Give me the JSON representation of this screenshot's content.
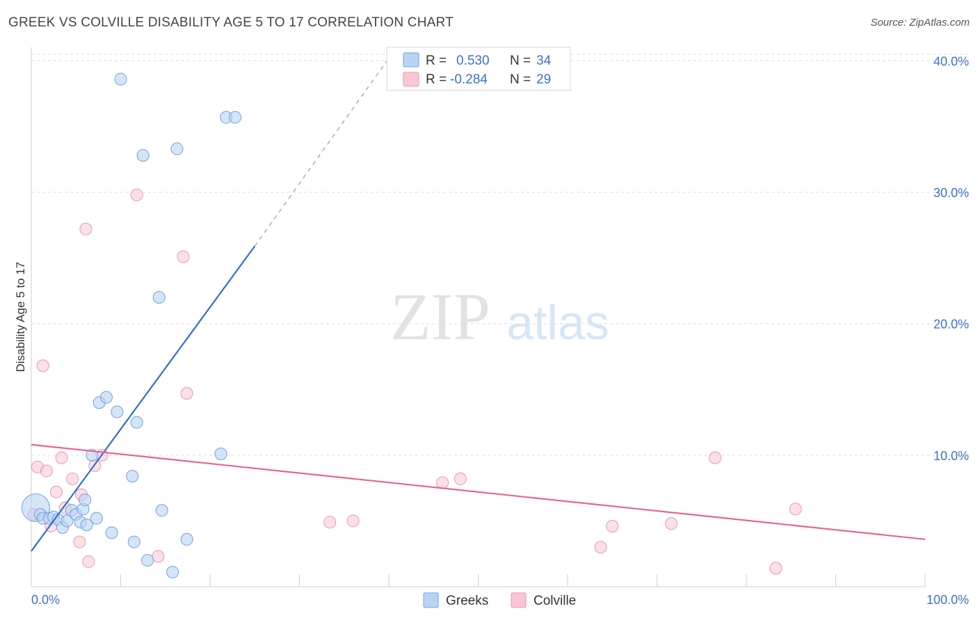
{
  "title": "GREEK VS COLVILLE DISABILITY AGE 5 TO 17 CORRELATION CHART",
  "source": "Source: ZipAtlas.com",
  "watermark": {
    "zip": "ZIP",
    "atlas": "atlas"
  },
  "colors": {
    "greeks_fill": "#b9d3f4",
    "greeks_stroke": "#6fa0e0",
    "greeks_line": "#2e6fcf",
    "colville_fill": "#f9c6d5",
    "colville_stroke": "#ec94b1",
    "colville_line": "#e8658f",
    "value_blue": "#3b73c8",
    "grid": "#dddddd"
  },
  "legend": {
    "rows": [
      {
        "r_label": "R = ",
        "r_value": "0.530",
        "n_label": "N = ",
        "n_value": "34"
      },
      {
        "r_label": "R = ",
        "r_value": "-0.284",
        "n_label": "N = ",
        "n_value": "29"
      }
    ]
  },
  "bottom_legend": [
    "Greeks",
    "Colville"
  ],
  "chart_data": {
    "type": "scatter",
    "title": "GREEK VS COLVILLE DISABILITY AGE 5 TO 17 CORRELATION CHART",
    "xlabel": "",
    "ylabel": "Disability Age 5 to 17",
    "xlim": [
      0,
      100
    ],
    "ylim": [
      0,
      40.5
    ],
    "x_tick_labels": [
      "0.0%",
      "100.0%"
    ],
    "y_ticks": [
      10,
      20,
      30,
      40
    ],
    "y_tick_labels": [
      "10.0%",
      "20.0%",
      "30.0%",
      "40.0%"
    ],
    "grid": true,
    "legend_position": "top-center",
    "series": [
      {
        "name": "Greeks",
        "r": 0.53,
        "n": 34,
        "points": [
          {
            "x": 0.5,
            "y": 6.0,
            "big": true
          },
          {
            "x": 1.0,
            "y": 5.5
          },
          {
            "x": 1.3,
            "y": 5.2
          },
          {
            "x": 2.0,
            "y": 5.2
          },
          {
            "x": 2.5,
            "y": 5.3
          },
          {
            "x": 3.0,
            "y": 5.1
          },
          {
            "x": 3.5,
            "y": 4.5
          },
          {
            "x": 4.0,
            "y": 5.0
          },
          {
            "x": 4.5,
            "y": 5.8
          },
          {
            "x": 5.0,
            "y": 5.5
          },
          {
            "x": 5.5,
            "y": 4.9
          },
          {
            "x": 5.8,
            "y": 5.9
          },
          {
            "x": 6.0,
            "y": 6.6
          },
          {
            "x": 6.2,
            "y": 4.7
          },
          {
            "x": 6.8,
            "y": 10.0
          },
          {
            "x": 7.3,
            "y": 5.2
          },
          {
            "x": 7.6,
            "y": 14.0
          },
          {
            "x": 8.4,
            "y": 14.4
          },
          {
            "x": 9.0,
            "y": 4.1
          },
          {
            "x": 9.6,
            "y": 13.3
          },
          {
            "x": 10.0,
            "y": 38.6
          },
          {
            "x": 11.3,
            "y": 8.4
          },
          {
            "x": 11.5,
            "y": 3.4
          },
          {
            "x": 11.8,
            "y": 12.5
          },
          {
            "x": 12.5,
            "y": 32.8
          },
          {
            "x": 13.0,
            "y": 2.0
          },
          {
            "x": 14.3,
            "y": 22.0
          },
          {
            "x": 14.6,
            "y": 5.8
          },
          {
            "x": 15.8,
            "y": 1.1
          },
          {
            "x": 16.3,
            "y": 33.3
          },
          {
            "x": 17.4,
            "y": 3.6
          },
          {
            "x": 21.2,
            "y": 10.1
          },
          {
            "x": 21.8,
            "y": 35.7
          },
          {
            "x": 22.8,
            "y": 35.7
          }
        ],
        "trend": {
          "x0": 0,
          "y0": 2.7,
          "x1": 25.0,
          "y1": 25.9,
          "dash_to_x": 40.0,
          "dash_to_y": 40.2
        }
      },
      {
        "name": "Colville",
        "r": -0.284,
        "n": 29,
        "points": [
          {
            "x": 0.3,
            "y": 5.5
          },
          {
            "x": 0.7,
            "y": 9.1
          },
          {
            "x": 1.3,
            "y": 16.8
          },
          {
            "x": 1.7,
            "y": 8.8
          },
          {
            "x": 2.2,
            "y": 4.6
          },
          {
            "x": 2.8,
            "y": 7.2
          },
          {
            "x": 3.4,
            "y": 9.8
          },
          {
            "x": 3.8,
            "y": 6.0
          },
          {
            "x": 4.6,
            "y": 8.2
          },
          {
            "x": 5.4,
            "y": 3.4
          },
          {
            "x": 5.6,
            "y": 7.0
          },
          {
            "x": 6.1,
            "y": 27.2
          },
          {
            "x": 6.4,
            "y": 1.9
          },
          {
            "x": 7.1,
            "y": 9.2
          },
          {
            "x": 7.9,
            "y": 10.0
          },
          {
            "x": 11.8,
            "y": 29.8
          },
          {
            "x": 14.2,
            "y": 2.3
          },
          {
            "x": 17.0,
            "y": 25.1
          },
          {
            "x": 17.4,
            "y": 14.7
          },
          {
            "x": 33.4,
            "y": 4.9
          },
          {
            "x": 36.0,
            "y": 5.0
          },
          {
            "x": 46.0,
            "y": 7.9
          },
          {
            "x": 48.0,
            "y": 8.2
          },
          {
            "x": 63.7,
            "y": 3.0
          },
          {
            "x": 65.0,
            "y": 4.6
          },
          {
            "x": 71.6,
            "y": 4.8
          },
          {
            "x": 76.5,
            "y": 9.8
          },
          {
            "x": 83.3,
            "y": 1.4
          },
          {
            "x": 85.5,
            "y": 5.9
          }
        ],
        "trend": {
          "x0": 0,
          "y0": 10.8,
          "x1": 100,
          "y1": 3.6
        }
      }
    ]
  }
}
